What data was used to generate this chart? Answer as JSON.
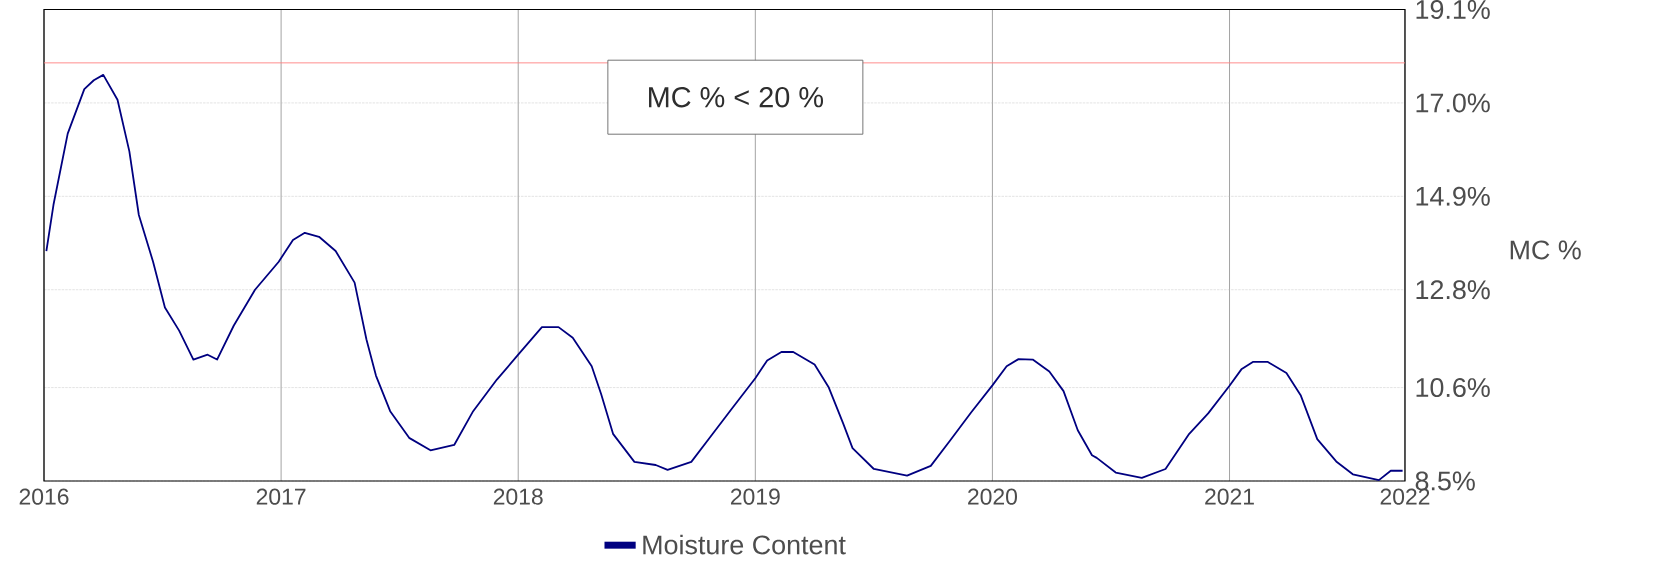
{
  "chart_data": {
    "type": "line",
    "ylabel": "MC %",
    "annotations": [
      "MC % < 20 %"
    ],
    "x": [
      2016.01,
      2016.04,
      2016.1,
      2016.17,
      2016.21,
      2016.25,
      2016.31,
      2016.36,
      2016.4,
      2016.46,
      2016.51,
      2016.57,
      2016.63,
      2016.69,
      2016.73,
      2016.8,
      2016.89,
      2016.99,
      2017.05,
      2017.1,
      2017.16,
      2017.23,
      2017.31,
      2017.36,
      2017.4,
      2017.46,
      2017.54,
      2017.63,
      2017.73,
      2017.81,
      2017.91,
      2018.0,
      2018.1,
      2018.17,
      2018.23,
      2018.31,
      2018.35,
      2018.4,
      2018.49,
      2018.58,
      2018.63,
      2018.73,
      2018.81,
      2018.9,
      2019.0,
      2019.05,
      2019.11,
      2019.16,
      2019.25,
      2019.31,
      2019.37,
      2019.41,
      2019.5,
      2019.64,
      2019.74,
      2019.82,
      2019.91,
      2020.0,
      2020.06,
      2020.11,
      2020.17,
      2020.24,
      2020.3,
      2020.36,
      2020.42,
      2020.44,
      2020.52,
      2020.63,
      2020.73,
      2020.83,
      2020.91,
      2021.0,
      2021.05,
      2021.1,
      2021.16,
      2021.24,
      2021.3,
      2021.37,
      2021.45,
      2021.52,
      2021.63,
      2021.68,
      2021.73
    ],
    "series": [
      {
        "name": "Moisture Content",
        "color": "#000080",
        "values": [
          13.67,
          14.71,
          16.31,
          17.31,
          17.51,
          17.63,
          17.07,
          15.91,
          14.48,
          13.43,
          12.4,
          11.88,
          11.23,
          11.34,
          11.23,
          11.99,
          12.8,
          13.43,
          13.92,
          14.08,
          13.99,
          13.67,
          12.96,
          11.68,
          10.87,
          10.07,
          9.47,
          9.19,
          9.31,
          10.07,
          10.78,
          11.34,
          11.96,
          11.96,
          11.72,
          11.08,
          10.45,
          9.56,
          8.93,
          8.86,
          8.75,
          8.93,
          9.49,
          10.12,
          10.81,
          11.21,
          11.4,
          11.4,
          11.12,
          10.6,
          9.8,
          9.24,
          8.77,
          8.62,
          8.84,
          9.4,
          10.04,
          10.65,
          11.08,
          11.24,
          11.23,
          10.96,
          10.52,
          9.64,
          9.08,
          9.02,
          8.69,
          8.57,
          8.77,
          9.56,
          10.02,
          10.64,
          11.01,
          11.18,
          11.18,
          10.93,
          10.43,
          9.44,
          8.94,
          8.65,
          8.52,
          8.73,
          8.73
        ]
      }
    ],
    "xlim": [
      2016,
      2021.74
    ],
    "xticks": [
      2016,
      2017,
      2018,
      2019,
      2020,
      2021,
      {
        "value": 2021.74,
        "label": "2022"
      }
    ],
    "ylim": [
      8.5,
      19.1
    ],
    "yticks": [
      {
        "value": 8.5,
        "label": "8.5%"
      },
      {
        "value": 10.6,
        "label": "10.6%"
      },
      {
        "value": 12.8,
        "label": "12.8%"
      },
      {
        "value": 14.9,
        "label": "14.9%"
      },
      {
        "value": 17.0,
        "label": "17.0%"
      },
      {
        "value": 19.1,
        "label": "19.1%"
      }
    ],
    "ref_lines": [
      {
        "axis": "y",
        "value": 17.9,
        "color": "#ff8080"
      }
    ],
    "grid": true,
    "legend": "bottom"
  }
}
